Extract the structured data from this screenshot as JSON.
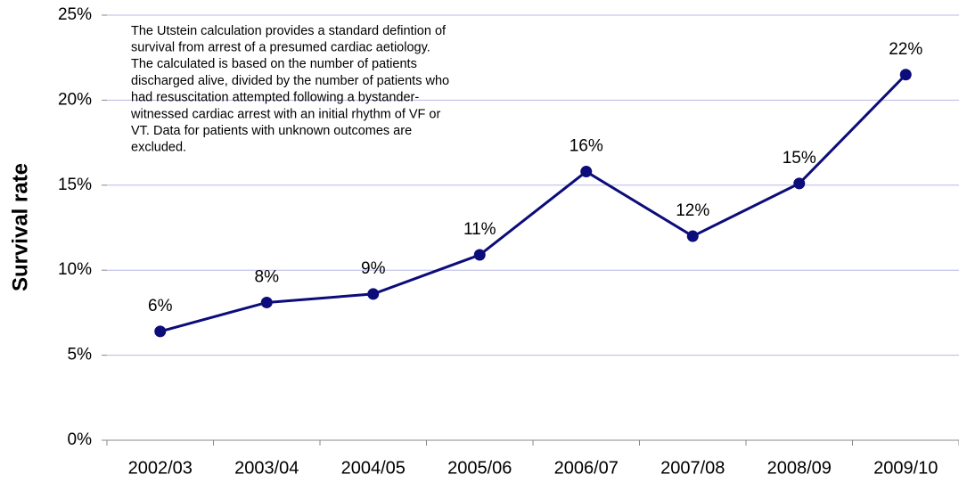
{
  "chart_data": {
    "type": "line",
    "ylabel": "Survival rate",
    "annotation": [
      "The Utstein calculation provides a standard defintion of",
      "survival from arrest of a presumed cardiac aetiology.",
      "The calculated is based on the number of patients",
      "discharged alive, divided by the number of patients who",
      "had resuscitation attempted following a bystander-",
      "witnessed cardiac arrest with an initial rhythm of VF or",
      "VT. Data for patients with unknown outcomes are",
      "excluded."
    ],
    "categories": [
      "2002/03",
      "2003/04",
      "2004/05",
      "2005/06",
      "2006/07",
      "2007/08",
      "2008/09",
      "2009/10"
    ],
    "values": [
      6.4,
      8.1,
      8.6,
      10.9,
      15.8,
      12.0,
      15.1,
      21.5
    ],
    "value_labels": [
      "6%",
      "8%",
      "9%",
      "11%",
      "16%",
      "12%",
      "15%",
      "22%"
    ],
    "color": "#0c0c7a",
    "ylim": [
      0,
      25
    ],
    "yticks": [
      {
        "value": 0,
        "label": "0%"
      },
      {
        "value": 5,
        "label": "5%"
      },
      {
        "value": 10,
        "label": "10%"
      },
      {
        "value": 15,
        "label": "15%"
      },
      {
        "value": 20,
        "label": "20%"
      },
      {
        "value": 25,
        "label": "25%"
      }
    ],
    "grid": true
  }
}
